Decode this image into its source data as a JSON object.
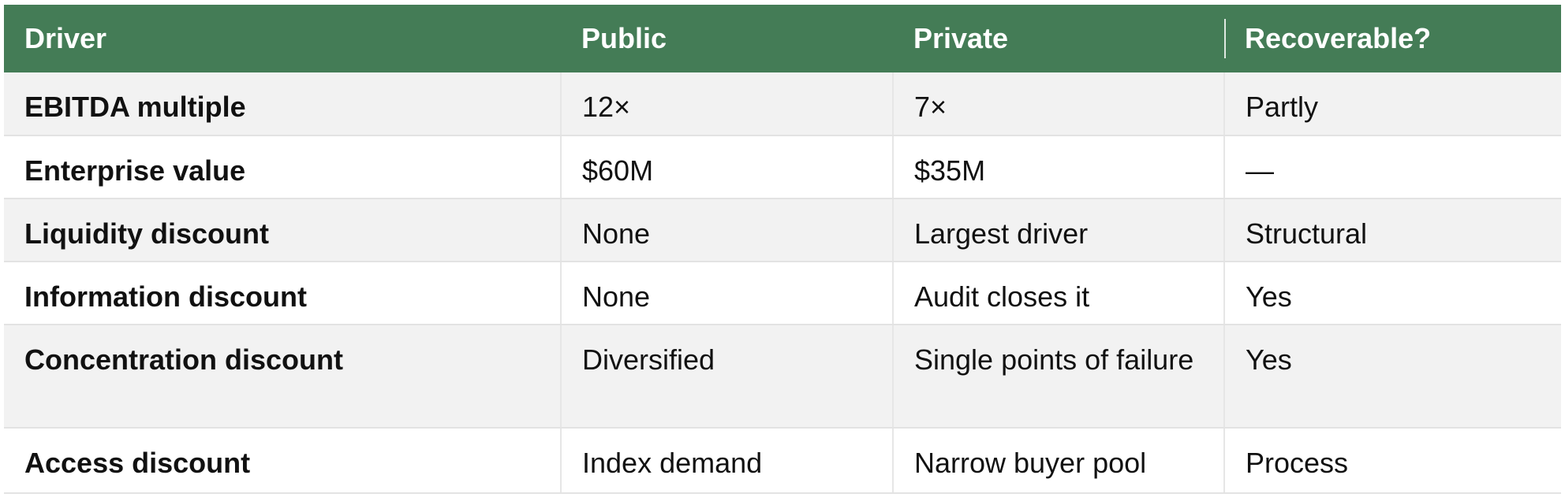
{
  "table": {
    "headers": [
      "Driver",
      "Public",
      "Private",
      "Recoverable?"
    ],
    "rows": [
      [
        "EBITDA multiple",
        "12×",
        "7×",
        "Partly"
      ],
      [
        "Enterprise value",
        "$60M",
        "$35M",
        "—"
      ],
      [
        "Liquidity discount",
        "None",
        "Largest driver",
        "Structural"
      ],
      [
        "Information discount",
        "None",
        "Audit closes it",
        "Yes"
      ],
      [
        "Concentration discount",
        "Diversified",
        "Single points of failure",
        "Yes"
      ],
      [
        "Access discount",
        "Index demand",
        "Narrow buyer pool",
        "Process"
      ]
    ]
  },
  "colors": {
    "header_bg": "#447c56",
    "header_text": "#ffffff",
    "row_alt": "#f2f2f2",
    "row_plain": "#ffffff"
  }
}
